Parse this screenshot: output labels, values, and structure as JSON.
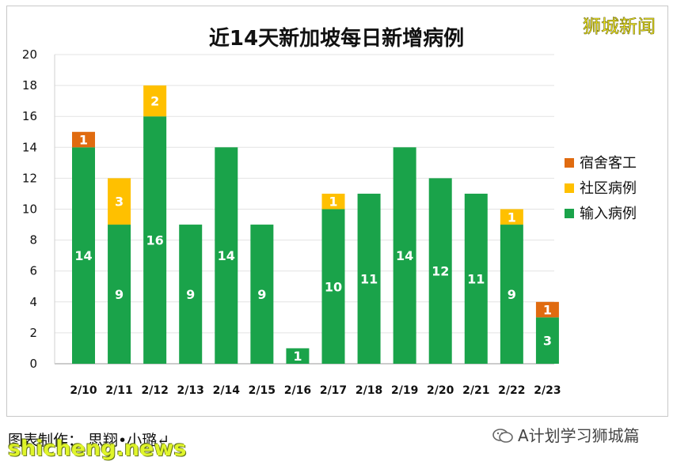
{
  "chart_data": {
    "type": "bar",
    "stacked": true,
    "title": "近14天新加坡每日新增病例",
    "categories": [
      "2/10",
      "2/11",
      "2/12",
      "2/13",
      "2/14",
      "2/15",
      "2/16",
      "2/17",
      "2/18",
      "2/19",
      "2/20",
      "2/21",
      "2/22",
      "2/23"
    ],
    "series": [
      {
        "name": "输入病例",
        "color": "#1aa34a",
        "values": [
          14,
          9,
          16,
          9,
          14,
          9,
          1,
          10,
          11,
          14,
          12,
          11,
          9,
          3
        ]
      },
      {
        "name": "社区病例",
        "color": "#ffc000",
        "values": [
          0,
          3,
          2,
          0,
          0,
          0,
          0,
          1,
          0,
          0,
          0,
          0,
          1,
          0
        ]
      },
      {
        "name": "宿舍客工",
        "color": "#e06b10",
        "values": [
          1,
          0,
          0,
          0,
          0,
          0,
          0,
          0,
          0,
          0,
          0,
          0,
          0,
          1
        ]
      }
    ],
    "legend_order": [
      "宿舍客工",
      "社区病例",
      "输入病例"
    ],
    "ylim": [
      0,
      20
    ],
    "yticks": [
      0,
      2,
      4,
      6,
      8,
      10,
      12,
      14,
      16,
      18,
      20
    ],
    "grid": true,
    "legend_position": "right"
  },
  "brand_label": "狮城新闻",
  "footer_text": "图表制作：  思翔•小璐↵",
  "wechat_label": "A计划学习狮城篇",
  "watermark": "shicheng.news"
}
